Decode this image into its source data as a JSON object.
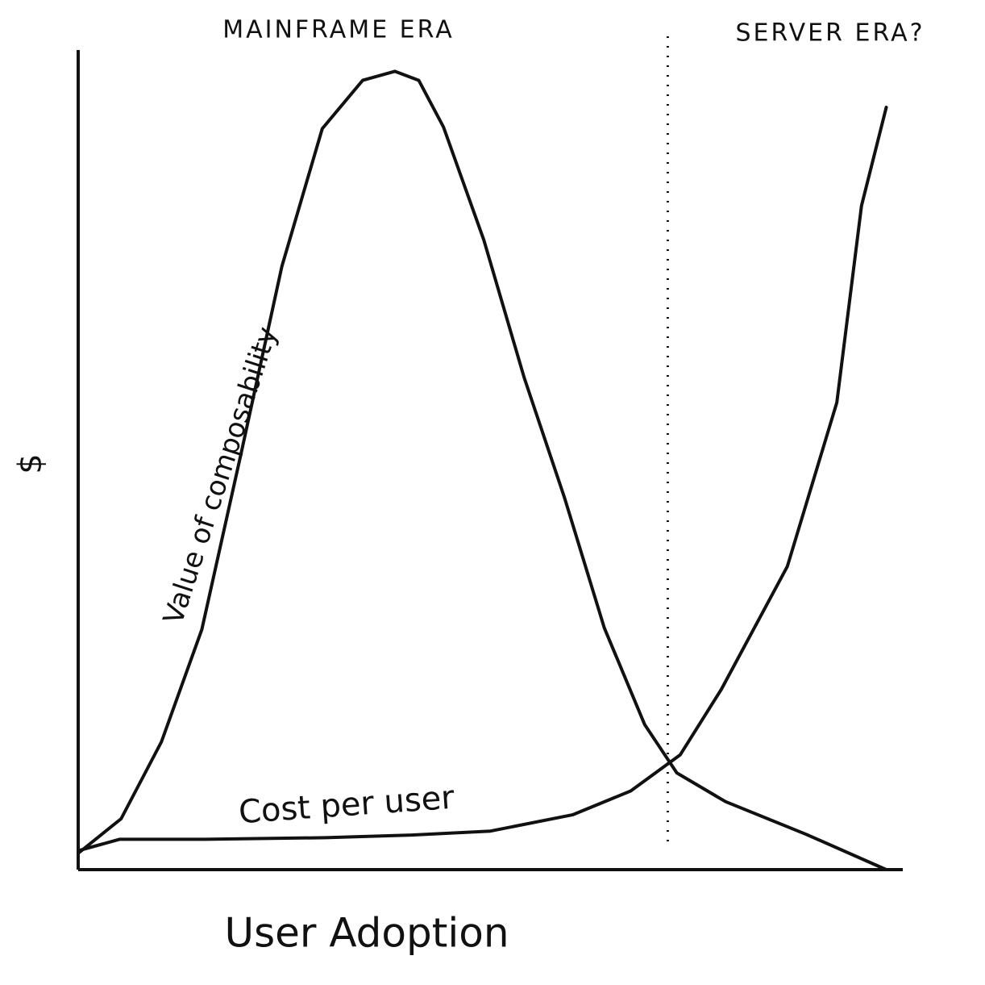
{
  "chart_data": {
    "type": "line",
    "x_label": "User Adoption",
    "y_label": "$",
    "annotations": [
      "MAINFRAME ERA",
      "SERVER ERA?"
    ],
    "vline_x": 71.5,
    "xlim": [
      0,
      100
    ],
    "ylim": [
      0,
      100
    ],
    "series": [
      {
        "name": "Value of composability",
        "color": "#111111",
        "x": [
          0,
          5.2,
          10.1,
          15.0,
          19.8,
          24.7,
          29.6,
          34.5,
          38.4,
          41.3,
          44.3,
          49.2,
          54.1,
          59.0,
          63.8,
          68.7,
          72.6,
          78.5,
          88.3,
          98.0
        ],
        "values": [
          2.0,
          6.2,
          15.6,
          29.3,
          51.0,
          73.6,
          90.4,
          96.3,
          97.4,
          96.3,
          90.6,
          76.8,
          60.0,
          45.3,
          29.5,
          17.7,
          11.8,
          8.3,
          4.3,
          0.0
        ]
      },
      {
        "name": "Cost per user",
        "color": "#111111",
        "x": [
          0,
          5,
          15,
          30,
          40,
          50,
          60,
          67,
          73,
          78,
          86,
          92,
          95,
          98
        ],
        "values": [
          2.3,
          3.7,
          3.7,
          3.9,
          4.2,
          4.7,
          6.7,
          9.6,
          14,
          22,
          37,
          57,
          81,
          93
        ]
      }
    ]
  }
}
